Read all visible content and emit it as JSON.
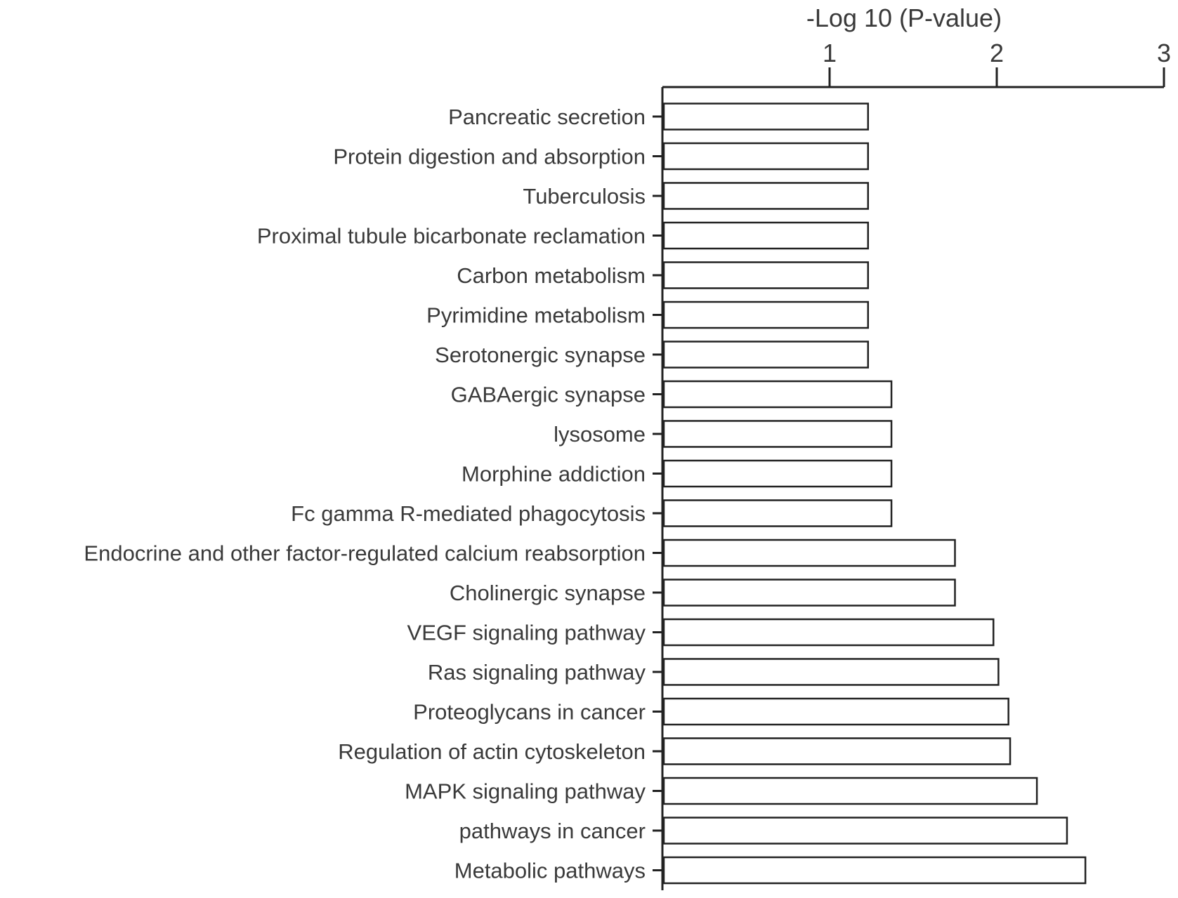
{
  "chart_data": {
    "type": "bar",
    "orientation": "horizontal",
    "xlabel": "-Log 10 (P-value)",
    "ylabel": "",
    "xlim": [
      0,
      3
    ],
    "xticks": [
      1,
      2,
      3
    ],
    "x_axis_position": "top",
    "grid": false,
    "legend": "none",
    "categories": [
      "Pancreatic secretion",
      "Protein digestion and absorption",
      "Tuberculosis",
      "Proximal tubule bicarbonate reclamation",
      "Carbon metabolism",
      "Pyrimidine metabolism",
      "Serotonergic synapse",
      "GABAergic synapse",
      "lysosome",
      "Morphine addiction",
      "Fc gamma R-mediated phagocytosis",
      "Endocrine and other factor-regulated calcium reabsorption",
      "Cholinergic synapse",
      "VEGF signaling pathway",
      "Ras signaling pathway",
      "Proteoglycans in cancer",
      "Regulation of actin cytoskeleton",
      "MAPK signaling pathway",
      "pathways in cancer",
      "Metabolic pathways"
    ],
    "values": [
      1.23,
      1.23,
      1.23,
      1.23,
      1.23,
      1.23,
      1.23,
      1.37,
      1.37,
      1.37,
      1.37,
      1.75,
      1.75,
      1.98,
      2.01,
      2.07,
      2.08,
      2.24,
      2.42,
      2.53
    ],
    "colors": {
      "bar_fill": "#ffffff",
      "bar_stroke": "#222222",
      "text": "#3a3a3a"
    }
  }
}
